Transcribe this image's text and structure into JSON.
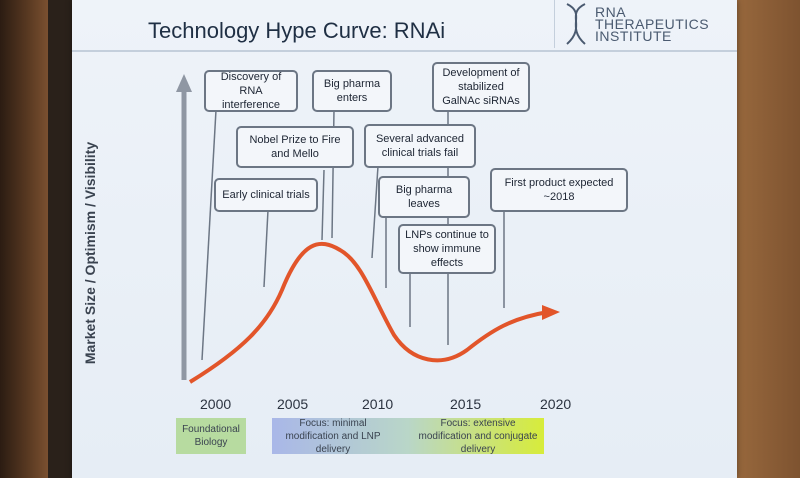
{
  "title": "Technology Hype Curve: RNAi",
  "logo": {
    "line1": "RNA",
    "line2": "THERAPEUTICS",
    "line3": "INSTITUTE"
  },
  "y_axis_label": "Market Size / Optimism / Visibility",
  "years": [
    "2000",
    "2005",
    "2010",
    "2015",
    "2020"
  ],
  "events": [
    {
      "text": "Discovery of RNA interference"
    },
    {
      "text": "Big pharma enters"
    },
    {
      "text": "Development of stabilized GalNAc siRNAs"
    },
    {
      "text": "Nobel Prize to Fire and Mello"
    },
    {
      "text": "Several advanced clinical trials fail"
    },
    {
      "text": "Early clinical trials"
    },
    {
      "text": "Big pharma leaves"
    },
    {
      "text": "First product expected ~2018"
    },
    {
      "text": "LNPs continue to show immune effects"
    }
  ],
  "bands": [
    {
      "text": "Foundational Biology",
      "color": "#b7dba0"
    },
    {
      "text": "Focus: minimal modification and LNP delivery",
      "color": "#a9b7e8"
    },
    {
      "text": "Focus: extensive modification and conjugate delivery",
      "color": "#d7ec3a"
    }
  ],
  "colors": {
    "curve": "#e2552a",
    "axis": "#8f97a3",
    "leader": "#6c7684"
  }
}
